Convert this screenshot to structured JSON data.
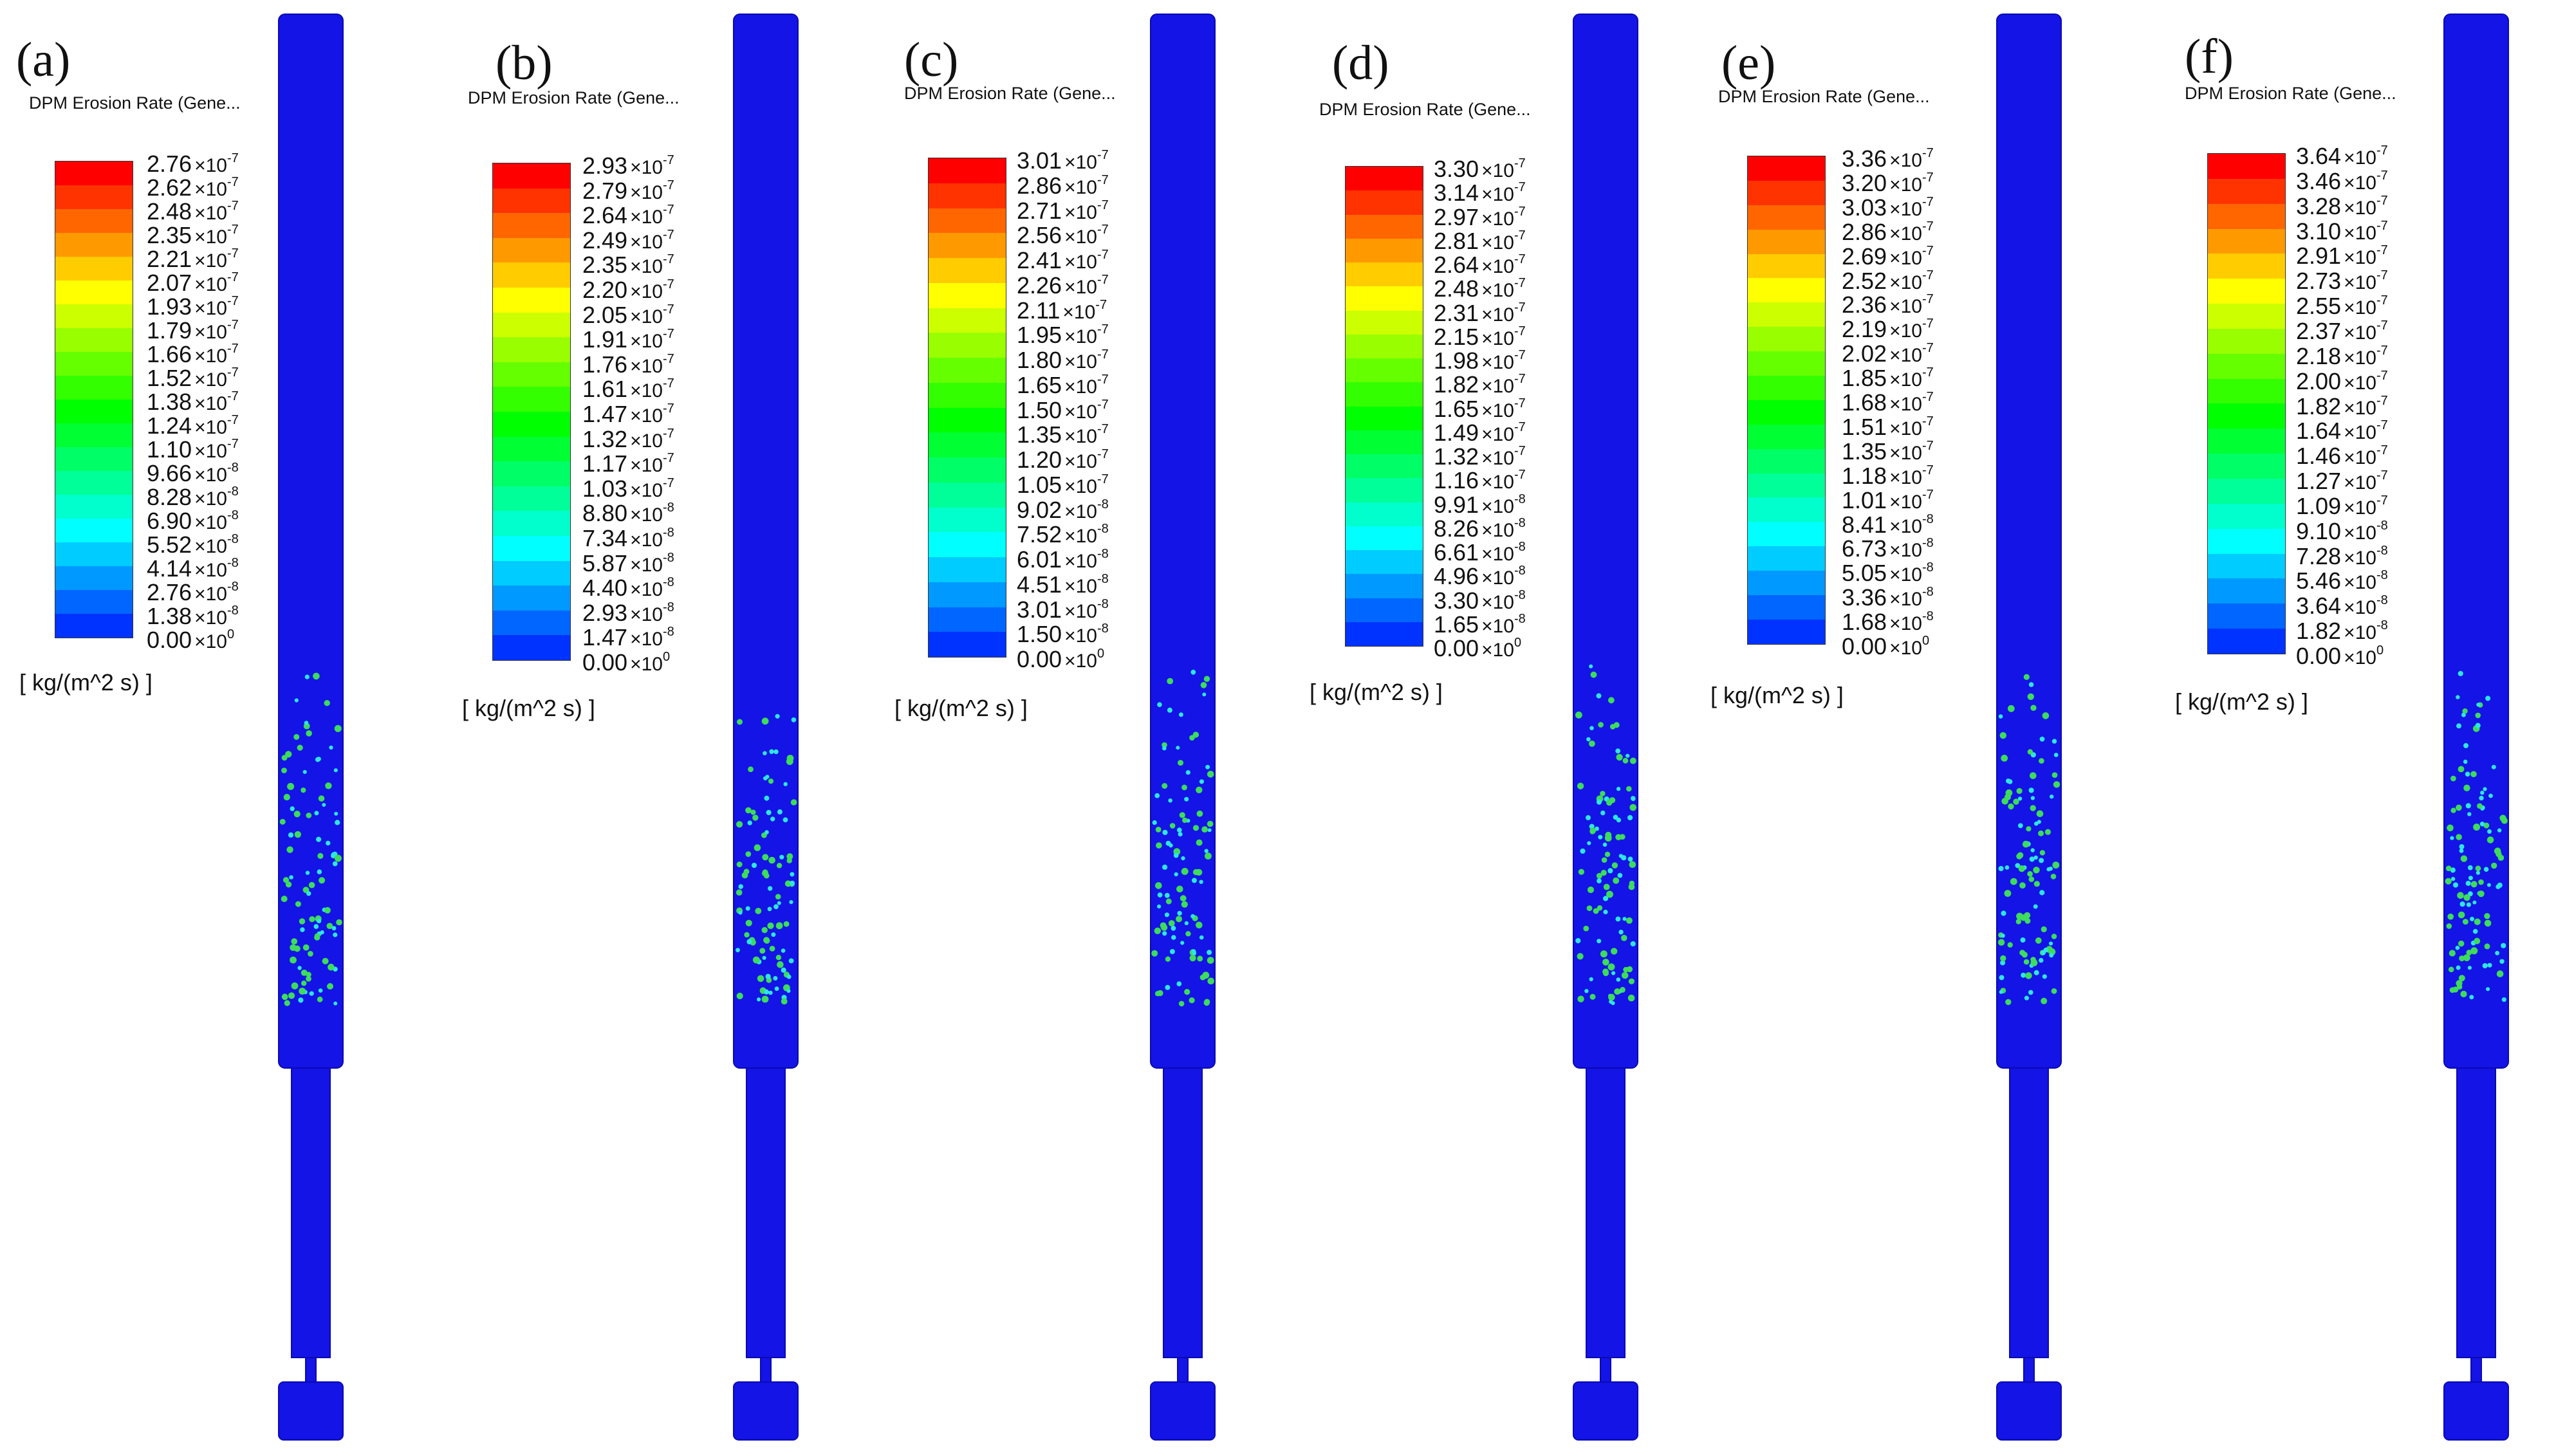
{
  "colors": {
    "geometry": "#1414e6",
    "geometry_edge": "#0a0ab0",
    "particle_green": "#3ddc5a",
    "particle_cyan": "#2ee6e0",
    "colormap": [
      "#0000ff",
      "#0033ff",
      "#0066ff",
      "#0099ff",
      "#00ccff",
      "#00ffff",
      "#00ffcc",
      "#00ff99",
      "#00ff66",
      "#00ff33",
      "#00ff00",
      "#33ff00",
      "#66ff00",
      "#99ff00",
      "#ccff00",
      "#ffff00",
      "#ffcc00",
      "#ff9900",
      "#ff6600",
      "#ff3300",
      "#ff0000"
    ]
  },
  "panels": [
    {
      "label": "(a)",
      "legend_title": "DPM Erosion Rate (Gene...",
      "unit": "[ kg/(m^2 s) ]",
      "ticks": [
        {
          "m": "2.76",
          "e": "-7"
        },
        {
          "m": "2.62",
          "e": "-7"
        },
        {
          "m": "2.48",
          "e": "-7"
        },
        {
          "m": "2.35",
          "e": "-7"
        },
        {
          "m": "2.21",
          "e": "-7"
        },
        {
          "m": "2.07",
          "e": "-7"
        },
        {
          "m": "1.93",
          "e": "-7"
        },
        {
          "m": "1.79",
          "e": "-7"
        },
        {
          "m": "1.66",
          "e": "-7"
        },
        {
          "m": "1.52",
          "e": "-7"
        },
        {
          "m": "1.38",
          "e": "-7"
        },
        {
          "m": "1.24",
          "e": "-7"
        },
        {
          "m": "1.10",
          "e": "-7"
        },
        {
          "m": "9.66",
          "e": "-8"
        },
        {
          "m": "8.28",
          "e": "-8"
        },
        {
          "m": "6.90",
          "e": "-8"
        },
        {
          "m": "5.52",
          "e": "-8"
        },
        {
          "m": "4.14",
          "e": "-8"
        },
        {
          "m": "2.76",
          "e": "-8"
        },
        {
          "m": "1.38",
          "e": "-8"
        },
        {
          "m": "0.00",
          "e": "0"
        }
      ]
    },
    {
      "label": "(b)",
      "legend_title": "DPM Erosion Rate (Gene...",
      "unit": "[ kg/(m^2 s) ]",
      "ticks": [
        {
          "m": "2.93",
          "e": "-7"
        },
        {
          "m": "2.79",
          "e": "-7"
        },
        {
          "m": "2.64",
          "e": "-7"
        },
        {
          "m": "2.49",
          "e": "-7"
        },
        {
          "m": "2.35",
          "e": "-7"
        },
        {
          "m": "2.20",
          "e": "-7"
        },
        {
          "m": "2.05",
          "e": "-7"
        },
        {
          "m": "1.91",
          "e": "-7"
        },
        {
          "m": "1.76",
          "e": "-7"
        },
        {
          "m": "1.61",
          "e": "-7"
        },
        {
          "m": "1.47",
          "e": "-7"
        },
        {
          "m": "1.32",
          "e": "-7"
        },
        {
          "m": "1.17",
          "e": "-7"
        },
        {
          "m": "1.03",
          "e": "-7"
        },
        {
          "m": "8.80",
          "e": "-8"
        },
        {
          "m": "7.34",
          "e": "-8"
        },
        {
          "m": "5.87",
          "e": "-8"
        },
        {
          "m": "4.40",
          "e": "-8"
        },
        {
          "m": "2.93",
          "e": "-8"
        },
        {
          "m": "1.47",
          "e": "-8"
        },
        {
          "m": "0.00",
          "e": "0"
        }
      ]
    },
    {
      "label": "(c)",
      "legend_title": "DPM Erosion Rate (Gene...",
      "unit": "[ kg/(m^2 s) ]",
      "ticks": [
        {
          "m": "3.01",
          "e": "-7"
        },
        {
          "m": "2.86",
          "e": "-7"
        },
        {
          "m": "2.71",
          "e": "-7"
        },
        {
          "m": "2.56",
          "e": "-7"
        },
        {
          "m": "2.41",
          "e": "-7"
        },
        {
          "m": "2.26",
          "e": "-7"
        },
        {
          "m": "2.11",
          "e": "-7"
        },
        {
          "m": "1.95",
          "e": "-7"
        },
        {
          "m": "1.80",
          "e": "-7"
        },
        {
          "m": "1.65",
          "e": "-7"
        },
        {
          "m": "1.50",
          "e": "-7"
        },
        {
          "m": "1.35",
          "e": "-7"
        },
        {
          "m": "1.20",
          "e": "-7"
        },
        {
          "m": "1.05",
          "e": "-7"
        },
        {
          "m": "9.02",
          "e": "-8"
        },
        {
          "m": "7.52",
          "e": "-8"
        },
        {
          "m": "6.01",
          "e": "-8"
        },
        {
          "m": "4.51",
          "e": "-8"
        },
        {
          "m": "3.01",
          "e": "-8"
        },
        {
          "m": "1.50",
          "e": "-8"
        },
        {
          "m": "0.00",
          "e": "0"
        }
      ]
    },
    {
      "label": "(d)",
      "legend_title": "DPM Erosion Rate (Gene...",
      "unit": "[ kg/(m^2 s) ]",
      "ticks": [
        {
          "m": "3.30",
          "e": "-7"
        },
        {
          "m": "3.14",
          "e": "-7"
        },
        {
          "m": "2.97",
          "e": "-7"
        },
        {
          "m": "2.81",
          "e": "-7"
        },
        {
          "m": "2.64",
          "e": "-7"
        },
        {
          "m": "2.48",
          "e": "-7"
        },
        {
          "m": "2.31",
          "e": "-7"
        },
        {
          "m": "2.15",
          "e": "-7"
        },
        {
          "m": "1.98",
          "e": "-7"
        },
        {
          "m": "1.82",
          "e": "-7"
        },
        {
          "m": "1.65",
          "e": "-7"
        },
        {
          "m": "1.49",
          "e": "-7"
        },
        {
          "m": "1.32",
          "e": "-7"
        },
        {
          "m": "1.16",
          "e": "-7"
        },
        {
          "m": "9.91",
          "e": "-8"
        },
        {
          "m": "8.26",
          "e": "-8"
        },
        {
          "m": "6.61",
          "e": "-8"
        },
        {
          "m": "4.96",
          "e": "-8"
        },
        {
          "m": "3.30",
          "e": "-8"
        },
        {
          "m": "1.65",
          "e": "-8"
        },
        {
          "m": "0.00",
          "e": "0"
        }
      ]
    },
    {
      "label": "(e)",
      "legend_title": "DPM Erosion Rate (Gene...",
      "unit": "[ kg/(m^2 s) ]",
      "ticks": [
        {
          "m": "3.36",
          "e": "-7"
        },
        {
          "m": "3.20",
          "e": "-7"
        },
        {
          "m": "3.03",
          "e": "-7"
        },
        {
          "m": "2.86",
          "e": "-7"
        },
        {
          "m": "2.69",
          "e": "-7"
        },
        {
          "m": "2.52",
          "e": "-7"
        },
        {
          "m": "2.36",
          "e": "-7"
        },
        {
          "m": "2.19",
          "e": "-7"
        },
        {
          "m": "2.02",
          "e": "-7"
        },
        {
          "m": "1.85",
          "e": "-7"
        },
        {
          "m": "1.68",
          "e": "-7"
        },
        {
          "m": "1.51",
          "e": "-7"
        },
        {
          "m": "1.35",
          "e": "-7"
        },
        {
          "m": "1.18",
          "e": "-7"
        },
        {
          "m": "1.01",
          "e": "-7"
        },
        {
          "m": "8.41",
          "e": "-8"
        },
        {
          "m": "6.73",
          "e": "-8"
        },
        {
          "m": "5.05",
          "e": "-8"
        },
        {
          "m": "3.36",
          "e": "-8"
        },
        {
          "m": "1.68",
          "e": "-8"
        },
        {
          "m": "0.00",
          "e": "0"
        }
      ]
    },
    {
      "label": "(f)",
      "legend_title": "DPM Erosion Rate (Gene...",
      "unit": "[ kg/(m^2 s) ]",
      "ticks": [
        {
          "m": "3.64",
          "e": "-7"
        },
        {
          "m": "3.46",
          "e": "-7"
        },
        {
          "m": "3.28",
          "e": "-7"
        },
        {
          "m": "3.10",
          "e": "-7"
        },
        {
          "m": "2.91",
          "e": "-7"
        },
        {
          "m": "2.73",
          "e": "-7"
        },
        {
          "m": "2.55",
          "e": "-7"
        },
        {
          "m": "2.37",
          "e": "-7"
        },
        {
          "m": "2.18",
          "e": "-7"
        },
        {
          "m": "2.00",
          "e": "-7"
        },
        {
          "m": "1.82",
          "e": "-7"
        },
        {
          "m": "1.64",
          "e": "-7"
        },
        {
          "m": "1.46",
          "e": "-7"
        },
        {
          "m": "1.27",
          "e": "-7"
        },
        {
          "m": "1.09",
          "e": "-7"
        },
        {
          "m": "9.10",
          "e": "-8"
        },
        {
          "m": "7.28",
          "e": "-8"
        },
        {
          "m": "5.46",
          "e": "-8"
        },
        {
          "m": "3.64",
          "e": "-8"
        },
        {
          "m": "1.82",
          "e": "-8"
        },
        {
          "m": "0.00",
          "e": "0"
        }
      ]
    }
  ]
}
